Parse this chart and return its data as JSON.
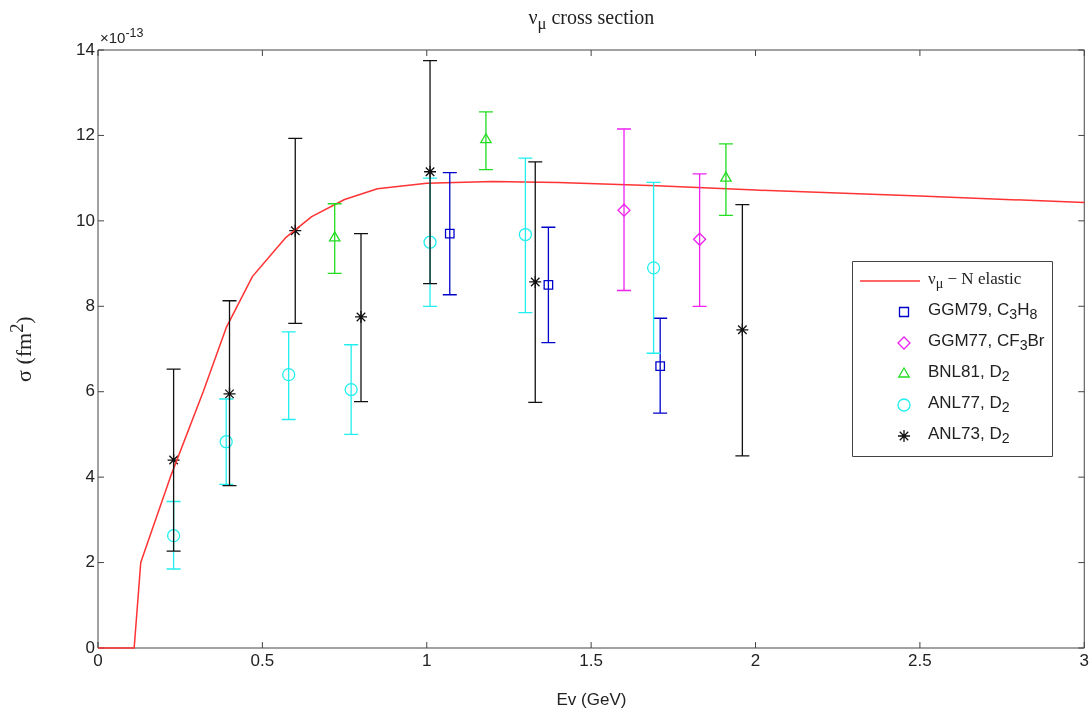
{
  "chart_data": {
    "type": "scatter",
    "title": "ν$_{μ}$ cross section",
    "xlabel": "Ev (GeV)",
    "ylabel": "σ (fm$^{2}$)",
    "annotations": [
      "×10$^{-13}$"
    ],
    "xlim": [
      0,
      3
    ],
    "xticks": [
      0,
      0.5,
      1,
      1.5,
      2,
      2.5,
      3
    ],
    "ylim": [
      0,
      14
    ],
    "yticks": [
      0,
      2,
      4,
      6,
      8,
      10,
      12,
      14
    ],
    "grid": false,
    "legend": "right",
    "series": [
      {
        "name": "ν$_{μ}$ − N elastic",
        "type": "line",
        "color": "#ff3333",
        "marker": "none",
        "line_style": "solid",
        "x": [
          0,
          0.11,
          0.13,
          0.22,
          0.32,
          0.39,
          0.47,
          0.57,
          0.65,
          0.75,
          0.85,
          1.0,
          1.2,
          1.4,
          1.7,
          2.0,
          2.5,
          3.0
        ],
        "values": [
          0,
          0,
          2.0,
          4.0,
          6.0,
          7.5,
          8.7,
          9.6,
          10.1,
          10.5,
          10.75,
          10.88,
          10.92,
          10.9,
          10.82,
          10.72,
          10.58,
          10.43
        ]
      },
      {
        "name": "GGM79, C$_{3}$H$_{8}$",
        "color": "#0000cc",
        "marker": "square",
        "x": [
          1.07,
          1.37,
          1.71
        ],
        "values": [
          9.7,
          8.5,
          6.6
        ],
        "errors": [
          [
            8.27,
            11.13
          ],
          [
            7.15,
            9.85
          ],
          [
            5.5,
            7.72
          ]
        ]
      },
      {
        "name": "GGM77, CF$_{3}$Br",
        "color": "#ee22ee",
        "marker": "diamond",
        "x": [
          1.6,
          1.83
        ],
        "values": [
          10.25,
          9.57
        ],
        "errors": [
          [
            8.37,
            12.15
          ],
          [
            8.0,
            11.1
          ]
        ]
      },
      {
        "name": "BNL81, D$_{2}$",
        "color": "#22dd22",
        "marker": "triangle",
        "x": [
          0.72,
          1.18,
          1.91
        ],
        "values": [
          9.6,
          11.9,
          11.0
        ],
        "errors": [
          [
            8.77,
            10.4
          ],
          [
            11.2,
            12.55
          ],
          [
            10.13,
            11.8
          ]
        ]
      },
      {
        "name": "ANL77, D$_{2}$",
        "color": "#22eeee",
        "marker": "circle",
        "x": [
          0.23,
          0.39,
          0.58,
          0.77,
          1.01,
          1.3,
          1.69
        ],
        "values": [
          2.63,
          4.83,
          6.4,
          6.05,
          9.5,
          9.68,
          8.9
        ],
        "errors": [
          [
            1.85,
            3.43
          ],
          [
            3.83,
            5.83
          ],
          [
            5.35,
            7.4
          ],
          [
            5.0,
            7.1
          ],
          [
            8.0,
            11.0
          ],
          [
            7.85,
            11.47
          ],
          [
            6.9,
            10.9
          ]
        ]
      },
      {
        "name": "ANL73, D$_{2}$",
        "color": "#111111",
        "marker": "cross",
        "x": [
          0.23,
          0.4,
          0.6,
          0.8,
          1.01,
          1.33,
          1.96
        ],
        "values": [
          4.4,
          5.95,
          9.77,
          7.75,
          11.15,
          8.57,
          7.45
        ],
        "errors": [
          [
            2.27,
            6.53
          ],
          [
            3.8,
            8.13
          ],
          [
            7.6,
            11.93
          ],
          [
            5.77,
            9.7
          ],
          [
            8.53,
            13.75
          ],
          [
            5.75,
            11.38
          ],
          [
            4.5,
            10.38
          ]
        ]
      }
    ]
  }
}
